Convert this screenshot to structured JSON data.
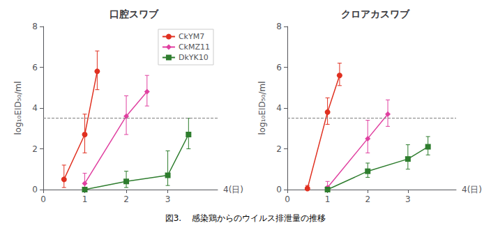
{
  "chart_data": [
    {
      "type": "line",
      "title": "口腔スワブ",
      "ylabel": "log₁₀EID₅₀/ml",
      "xlabel": "4(日)",
      "xlim": [
        0,
        4.2
      ],
      "ylim": [
        0,
        8
      ],
      "xticks": [
        0,
        1,
        2,
        3
      ],
      "yticks": [
        0,
        2,
        4,
        6,
        8
      ],
      "grid": false,
      "hline": 3.5,
      "legend": "upper right",
      "series": [
        {
          "name": "CkYM7",
          "color": "#e03020",
          "marker": "circle",
          "x": [
            0.5,
            1.0,
            1.3
          ],
          "values": [
            0.5,
            2.7,
            5.8
          ],
          "yerr_lo": [
            0.4,
            0.9,
            0.9
          ],
          "yerr_hi": [
            0.7,
            1.0,
            1.0
          ]
        },
        {
          "name": "CkMZ11",
          "color": "#e040a0",
          "marker": "diamond",
          "x": [
            1.0,
            2.0,
            2.5
          ],
          "values": [
            0.3,
            3.6,
            4.8
          ],
          "yerr_lo": [
            0.3,
            0.9,
            0.7
          ],
          "yerr_hi": [
            0.5,
            1.0,
            0.8
          ]
        },
        {
          "name": "DkYK10",
          "color": "#2e7d2e",
          "marker": "square",
          "x": [
            1.0,
            2.0,
            3.0,
            3.5
          ],
          "values": [
            0.0,
            0.4,
            0.7,
            2.7
          ],
          "yerr_lo": [
            0.0,
            0.3,
            0.5,
            0.7
          ],
          "yerr_hi": [
            0.1,
            0.5,
            1.2,
            0.8
          ]
        }
      ]
    },
    {
      "type": "line",
      "title": "クロアカスワブ",
      "ylabel": "log₁₀EID₅₀/ml",
      "xlabel": "4(日)",
      "xlim": [
        0,
        4.2
      ],
      "ylim": [
        0,
        8
      ],
      "xticks": [
        0,
        1,
        2,
        3
      ],
      "yticks": [
        0,
        2,
        4,
        6,
        8
      ],
      "grid": false,
      "hline": 3.5,
      "series": [
        {
          "name": "CkYM7",
          "color": "#e03020",
          "marker": "circle",
          "x": [
            0.5,
            1.0,
            1.3
          ],
          "values": [
            0.05,
            3.8,
            5.6
          ],
          "yerr_lo": [
            0.05,
            0.6,
            0.5
          ],
          "yerr_hi": [
            0.15,
            0.7,
            0.6
          ]
        },
        {
          "name": "CkMZ11",
          "color": "#e040a0",
          "marker": "diamond",
          "x": [
            1.0,
            2.0,
            2.5
          ],
          "values": [
            0.1,
            2.5,
            3.7
          ],
          "yerr_lo": [
            0.1,
            0.7,
            0.6
          ],
          "yerr_hi": [
            0.3,
            0.9,
            0.7
          ]
        },
        {
          "name": "DkYK10",
          "color": "#2e7d2e",
          "marker": "square",
          "x": [
            1.0,
            2.0,
            3.0,
            3.5
          ],
          "values": [
            0.0,
            0.9,
            1.5,
            2.1
          ],
          "yerr_lo": [
            0.0,
            0.3,
            0.5,
            0.4
          ],
          "yerr_hi": [
            0.15,
            0.4,
            0.7,
            0.5
          ]
        }
      ]
    }
  ],
  "caption": "図3.    感染鶏からのウイルス排泄量の推移"
}
